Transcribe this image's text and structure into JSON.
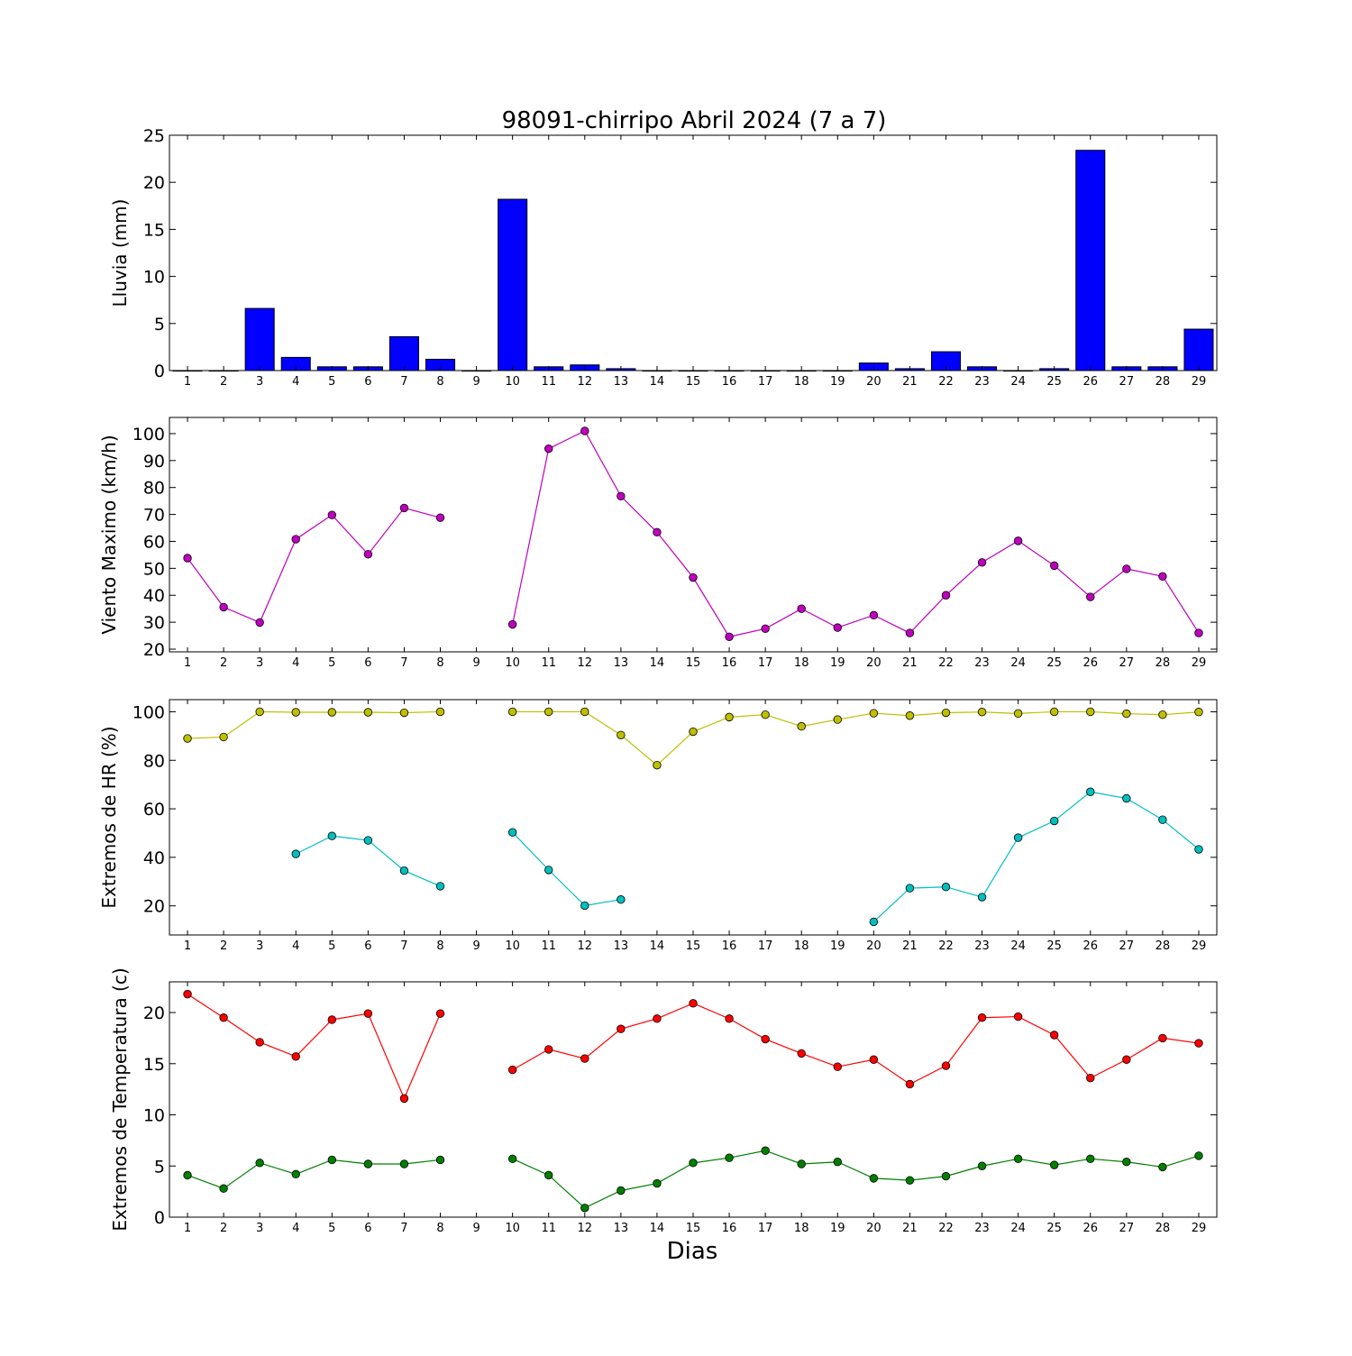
{
  "title": "98091-chirripo Abril 2024  (7 a 7)",
  "xlabel": "Dias",
  "chart_data": [
    {
      "type": "bar",
      "ylabel": "Lluvia (mm)",
      "ylim": [
        0,
        25
      ],
      "yticks": [
        0,
        5,
        10,
        15,
        20,
        25
      ],
      "categories": [
        1,
        2,
        3,
        4,
        5,
        6,
        7,
        8,
        9,
        10,
        11,
        12,
        13,
        14,
        15,
        16,
        17,
        18,
        19,
        20,
        21,
        22,
        23,
        24,
        25,
        26,
        27,
        28,
        29
      ],
      "values": [
        0,
        0,
        6.6,
        1.4,
        0.4,
        0.4,
        3.6,
        1.2,
        0,
        18.2,
        0.4,
        0.6,
        0.2,
        0,
        0,
        0,
        0,
        0,
        0,
        0.8,
        0.2,
        2.0,
        0.4,
        0,
        0.2,
        23.4,
        0.4,
        0.4,
        4.4
      ],
      "color": "#0000ff"
    },
    {
      "type": "line",
      "ylabel": "Viento Maximo (km/h)",
      "ylim": [
        19,
        106
      ],
      "yticks": [
        20,
        30,
        40,
        50,
        60,
        70,
        80,
        90,
        100
      ],
      "x": [
        1,
        2,
        3,
        4,
        5,
        6,
        7,
        8,
        9,
        10,
        11,
        12,
        13,
        14,
        15,
        16,
        17,
        18,
        19,
        20,
        21,
        22,
        23,
        24,
        25,
        26,
        27,
        28,
        29
      ],
      "series": [
        {
          "color": "#bf00bf",
          "values": [
            53.8,
            35.6,
            29.9,
            60.8,
            69.8,
            55.2,
            72.4,
            68.8,
            null,
            29.2,
            94.4,
            101.0,
            76.8,
            63.4,
            46.6,
            24.6,
            27.6,
            35.0,
            28.0,
            32.6,
            26.0,
            40.0,
            52.2,
            60.2,
            51.0,
            39.4,
            49.8,
            47.0,
            26.0
          ]
        }
      ]
    },
    {
      "type": "line",
      "ylabel": "Extremos de HR (%)",
      "ylim": [
        8,
        105
      ],
      "yticks": [
        20,
        40,
        60,
        80,
        100
      ],
      "x": [
        1,
        2,
        3,
        4,
        5,
        6,
        7,
        8,
        9,
        10,
        11,
        12,
        13,
        14,
        15,
        16,
        17,
        18,
        19,
        20,
        21,
        22,
        23,
        24,
        25,
        26,
        27,
        28,
        29
      ],
      "series": [
        {
          "color": "#bfbf00",
          "values": [
            89,
            89.6,
            100,
            99.8,
            99.8,
            99.8,
            99.6,
            100,
            null,
            100,
            100,
            100,
            90.4,
            78,
            91.8,
            97.8,
            98.8,
            94,
            96.8,
            99.4,
            98.4,
            99.6,
            99.9,
            99.3,
            100,
            100,
            99.2,
            98.8,
            99.9
          ]
        },
        {
          "color": "#00bfbf",
          "values": [
            null,
            null,
            null,
            41.4,
            48.8,
            47,
            34.5,
            28.1,
            null,
            50.3,
            34.8,
            20.1,
            22.6,
            null,
            null,
            null,
            null,
            null,
            null,
            13.4,
            27.3,
            27.8,
            23.6,
            48.1,
            55,
            67,
            64.3,
            55.5,
            43.3
          ]
        }
      ]
    },
    {
      "type": "line",
      "ylabel": "Extremos de Temperatura (c)",
      "ylim": [
        0,
        23
      ],
      "yticks": [
        0,
        5,
        10,
        15,
        20
      ],
      "x": [
        1,
        2,
        3,
        4,
        5,
        6,
        7,
        8,
        9,
        10,
        11,
        12,
        13,
        14,
        15,
        16,
        17,
        18,
        19,
        20,
        21,
        22,
        23,
        24,
        25,
        26,
        27,
        28,
        29
      ],
      "series": [
        {
          "color": "#ff0000",
          "values": [
            21.8,
            19.5,
            17.1,
            15.7,
            19.3,
            19.9,
            11.6,
            19.9,
            null,
            14.4,
            16.4,
            15.5,
            18.4,
            19.4,
            20.9,
            19.4,
            17.4,
            16.0,
            14.7,
            15.4,
            13.0,
            14.8,
            19.5,
            19.6,
            17.8,
            13.6,
            15.4,
            17.5,
            17.0
          ]
        },
        {
          "color": "#007f00",
          "values": [
            4.1,
            2.8,
            5.3,
            4.2,
            5.6,
            5.2,
            5.2,
            5.6,
            null,
            5.7,
            4.1,
            0.9,
            2.6,
            3.3,
            5.3,
            5.8,
            6.5,
            5.2,
            5.4,
            3.8,
            3.6,
            4.0,
            5.0,
            5.7,
            5.1,
            5.7,
            5.4,
            4.9,
            6.0
          ]
        }
      ]
    }
  ]
}
